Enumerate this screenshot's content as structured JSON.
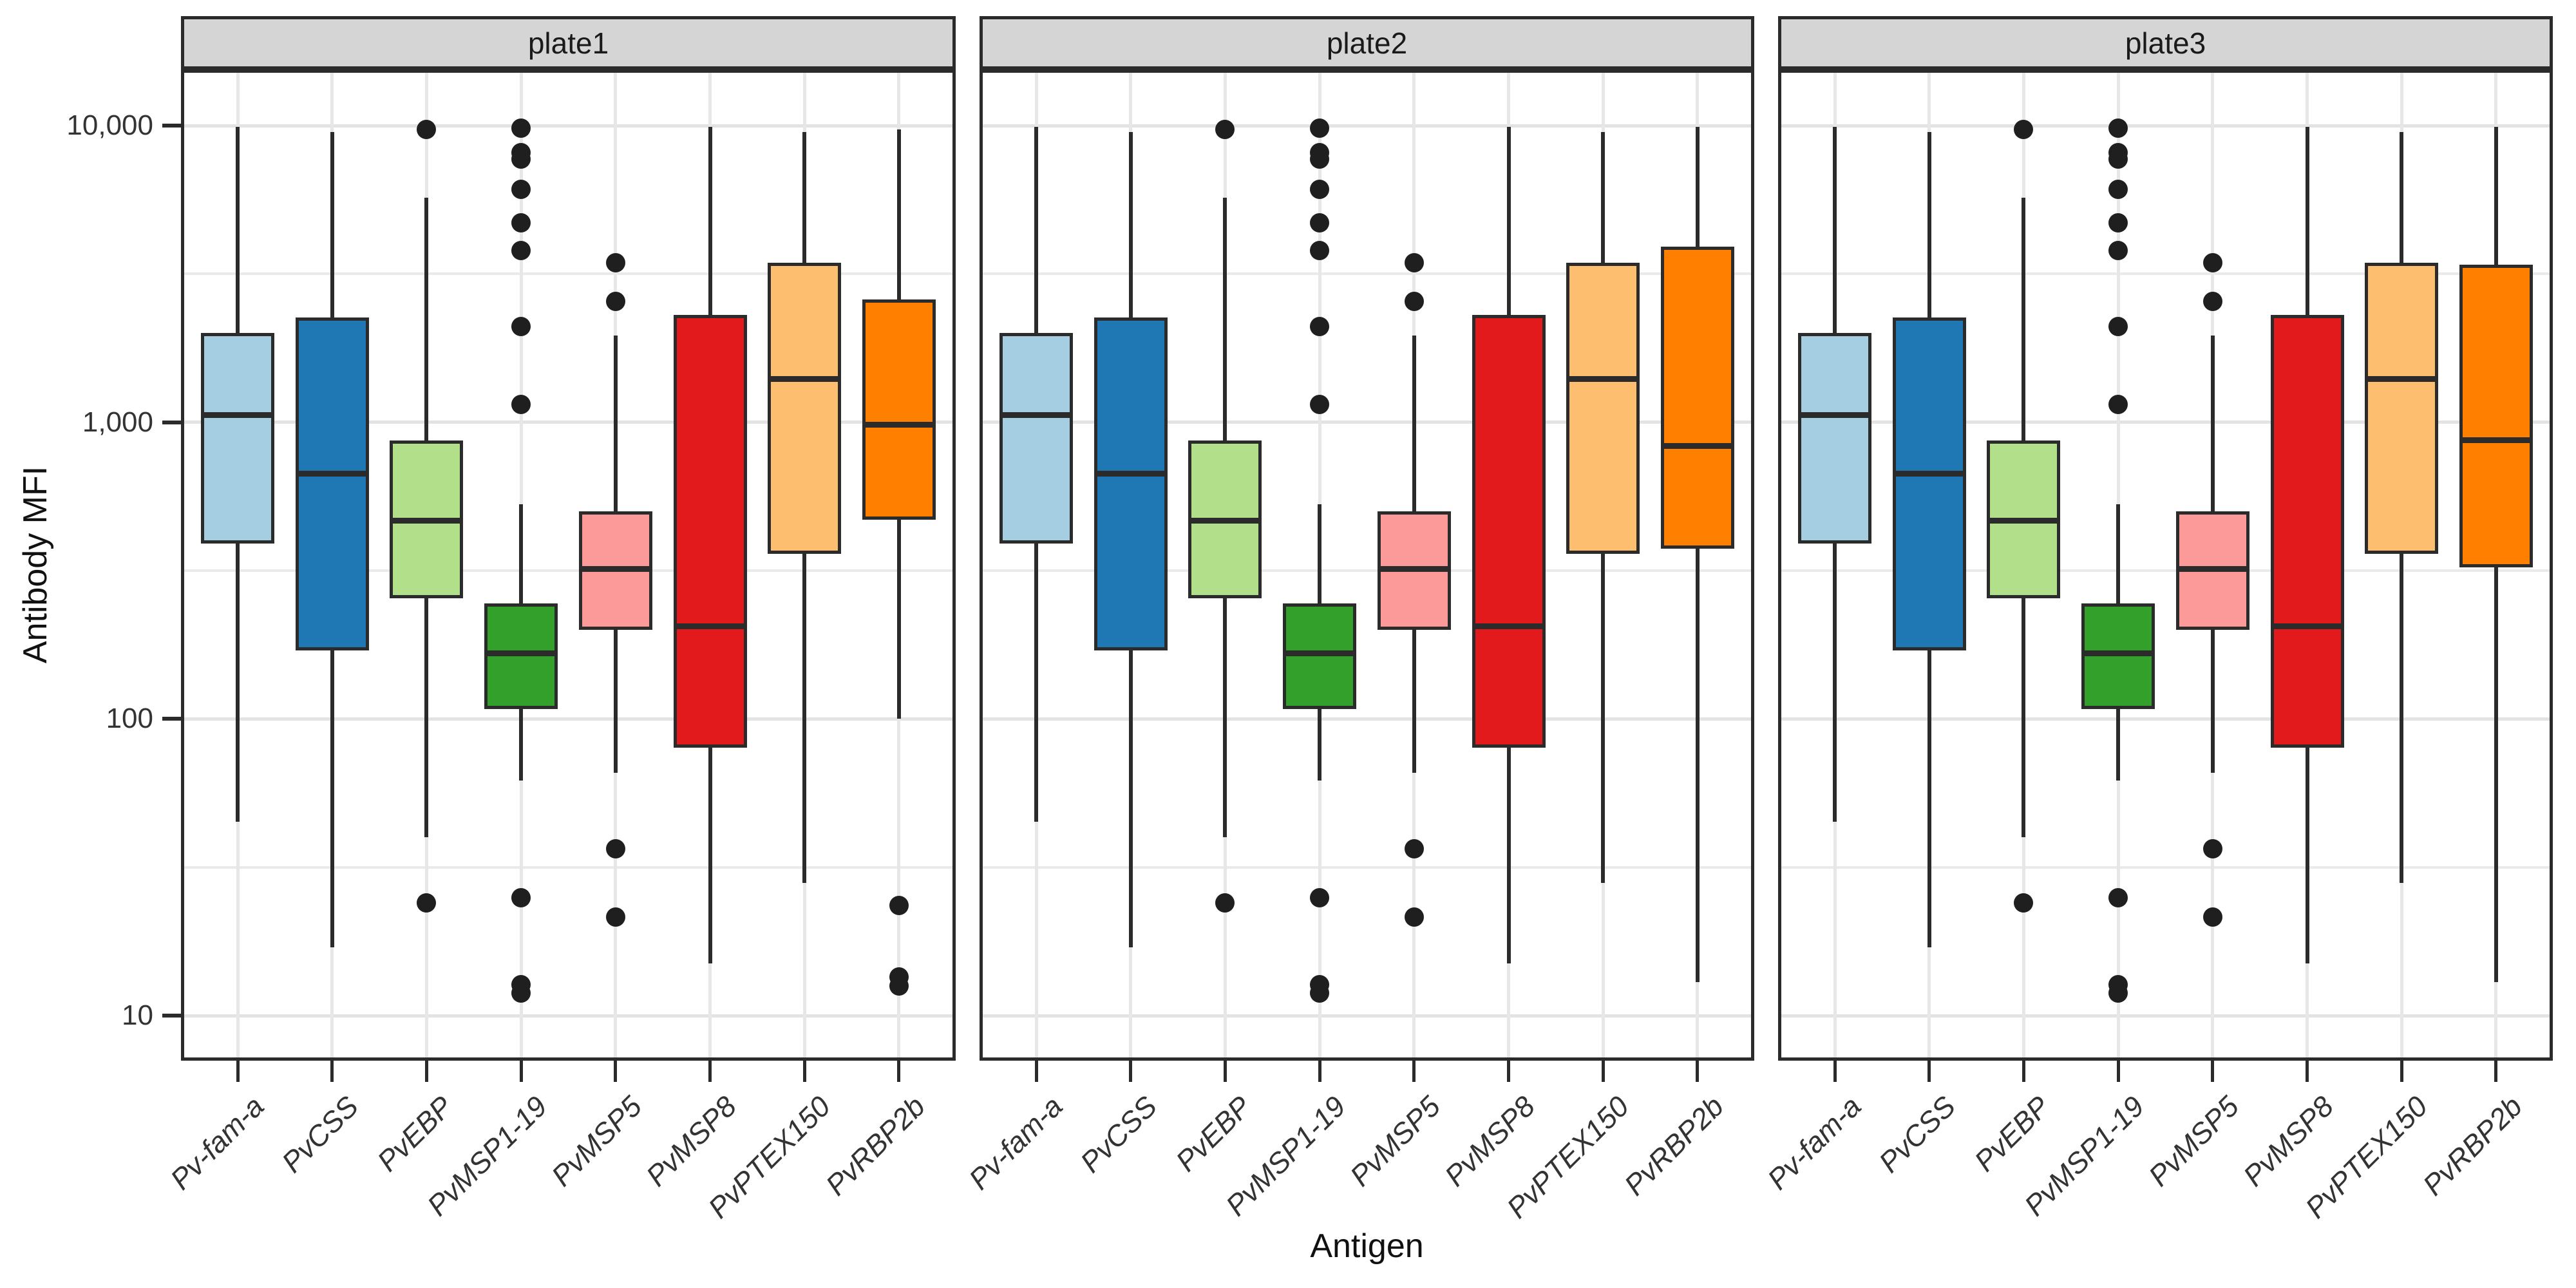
{
  "chart_data": {
    "type": "boxplot",
    "xlabel": "Antigen",
    "ylabel": "Antibody MFI",
    "y_scale": "log10",
    "ylim": [
      7,
      15000
    ],
    "grid": true,
    "yticks": [
      {
        "value": 10000,
        "label": "10,000"
      },
      {
        "value": 1000,
        "label": "1,000"
      },
      {
        "value": 100,
        "label": "100"
      },
      {
        "value": 10,
        "label": "10"
      }
    ],
    "minor_gridline_values": [
      3162,
      316,
      31.6
    ],
    "categories": [
      "Pv-fam-a",
      "PvCSS",
      "PvEBP",
      "PvMSP1-19",
      "PvMSP5",
      "PvMSP8",
      "PvPTEX150",
      "PvRBP2b"
    ],
    "colors": [
      "#A6CEE3",
      "#1F78B4",
      "#B2DF8A",
      "#33A02C",
      "#FB9A99",
      "#E31A1C",
      "#FDBF6F",
      "#FF7F00"
    ],
    "panels": [
      {
        "label": "plate1",
        "boxes": [
          {
            "antigen": "Pv-fam-a",
            "whisker_low": 45,
            "q1": 390,
            "median": 1060,
            "q3": 2000,
            "whisker_high": 9900,
            "outliers": []
          },
          {
            "antigen": "PvCSS",
            "whisker_low": 17,
            "q1": 170,
            "median": 670,
            "q3": 2250,
            "whisker_high": 9500,
            "outliers": []
          },
          {
            "antigen": "PvEBP",
            "whisker_low": 40,
            "q1": 255,
            "median": 465,
            "q3": 870,
            "whisker_high": 5700,
            "outliers": [
              9700,
              24
            ]
          },
          {
            "antigen": "PvMSP1-19",
            "whisker_low": 62,
            "q1": 108,
            "median": 166,
            "q3": 245,
            "whisker_high": 530,
            "outliers": [
              9800,
              8100,
              7700,
              6100,
              4700,
              3800,
              2100,
              1150,
              25,
              12.7,
              11.9
            ]
          },
          {
            "antigen": "PvMSP5",
            "whisker_low": 66,
            "q1": 200,
            "median": 320,
            "q3": 500,
            "whisker_high": 1960,
            "outliers": [
              3450,
              2550,
              36.5,
              21.5
            ]
          },
          {
            "antigen": "PvMSP8",
            "whisker_low": 15,
            "q1": 80,
            "median": 205,
            "q3": 2300,
            "whisker_high": 9900,
            "outliers": []
          },
          {
            "antigen": "PvPTEX150",
            "whisker_low": 28,
            "q1": 360,
            "median": 1400,
            "q3": 3450,
            "whisker_high": 9500,
            "outliers": []
          },
          {
            "antigen": "PvRBP2b",
            "whisker_low": 100,
            "q1": 470,
            "median": 980,
            "q3": 2600,
            "whisker_high": 9700,
            "outliers": [
              23.5,
              13.5,
              12.6
            ]
          }
        ]
      },
      {
        "label": "plate2",
        "boxes": [
          {
            "antigen": "Pv-fam-a",
            "whisker_low": 45,
            "q1": 390,
            "median": 1060,
            "q3": 2000,
            "whisker_high": 9900,
            "outliers": []
          },
          {
            "antigen": "PvCSS",
            "whisker_low": 17,
            "q1": 170,
            "median": 670,
            "q3": 2250,
            "whisker_high": 9500,
            "outliers": []
          },
          {
            "antigen": "PvEBP",
            "whisker_low": 40,
            "q1": 255,
            "median": 465,
            "q3": 870,
            "whisker_high": 5700,
            "outliers": [
              9700,
              24
            ]
          },
          {
            "antigen": "PvMSP1-19",
            "whisker_low": 62,
            "q1": 108,
            "median": 166,
            "q3": 245,
            "whisker_high": 530,
            "outliers": [
              9800,
              8100,
              7700,
              6100,
              4700,
              3800,
              2100,
              1150,
              25,
              12.7,
              11.9
            ]
          },
          {
            "antigen": "PvMSP5",
            "whisker_low": 66,
            "q1": 200,
            "median": 320,
            "q3": 500,
            "whisker_high": 1960,
            "outliers": [
              3450,
              2550,
              36.5,
              21.5
            ]
          },
          {
            "antigen": "PvMSP8",
            "whisker_low": 15,
            "q1": 80,
            "median": 205,
            "q3": 2300,
            "whisker_high": 9900,
            "outliers": []
          },
          {
            "antigen": "PvPTEX150",
            "whisker_low": 28,
            "q1": 360,
            "median": 1400,
            "q3": 3450,
            "whisker_high": 9500,
            "outliers": []
          },
          {
            "antigen": "PvRBP2b",
            "whisker_low": 13,
            "q1": 375,
            "median": 830,
            "q3": 3900,
            "whisker_high": 9900,
            "outliers": []
          }
        ]
      },
      {
        "label": "plate3",
        "boxes": [
          {
            "antigen": "Pv-fam-a",
            "whisker_low": 45,
            "q1": 390,
            "median": 1060,
            "q3": 2000,
            "whisker_high": 9900,
            "outliers": []
          },
          {
            "antigen": "PvCSS",
            "whisker_low": 17,
            "q1": 170,
            "median": 670,
            "q3": 2250,
            "whisker_high": 9500,
            "outliers": []
          },
          {
            "antigen": "PvEBP",
            "whisker_low": 40,
            "q1": 255,
            "median": 465,
            "q3": 870,
            "whisker_high": 5700,
            "outliers": [
              9700,
              24
            ]
          },
          {
            "antigen": "PvMSP1-19",
            "whisker_low": 62,
            "q1": 108,
            "median": 166,
            "q3": 245,
            "whisker_high": 530,
            "outliers": [
              9800,
              8100,
              7700,
              6100,
              4700,
              3800,
              2100,
              1150,
              25,
              12.7,
              11.9
            ]
          },
          {
            "antigen": "PvMSP5",
            "whisker_low": 66,
            "q1": 200,
            "median": 320,
            "q3": 500,
            "whisker_high": 1960,
            "outliers": [
              3450,
              2550,
              36.5,
              21.5
            ]
          },
          {
            "antigen": "PvMSP8",
            "whisker_low": 15,
            "q1": 80,
            "median": 205,
            "q3": 2300,
            "whisker_high": 9900,
            "outliers": []
          },
          {
            "antigen": "PvPTEX150",
            "whisker_low": 28,
            "q1": 360,
            "median": 1400,
            "q3": 3450,
            "whisker_high": 9500,
            "outliers": []
          },
          {
            "antigen": "PvRBP2b",
            "whisker_low": 13,
            "q1": 325,
            "median": 870,
            "q3": 3400,
            "whisker_high": 9900,
            "outliers": []
          }
        ]
      }
    ]
  },
  "theme": {
    "strip_fill": "#d5d5d5",
    "panel_border": "#2b2b2b",
    "grid_major": "#e3e3e3",
    "grid_minor": "#eaeaea",
    "grid_vertical": "#e7e7e7",
    "box_outline": "#2b2b2b",
    "outlier_color": "#1f1f1f",
    "tick_text": "#333333",
    "title_text": "#111111"
  }
}
